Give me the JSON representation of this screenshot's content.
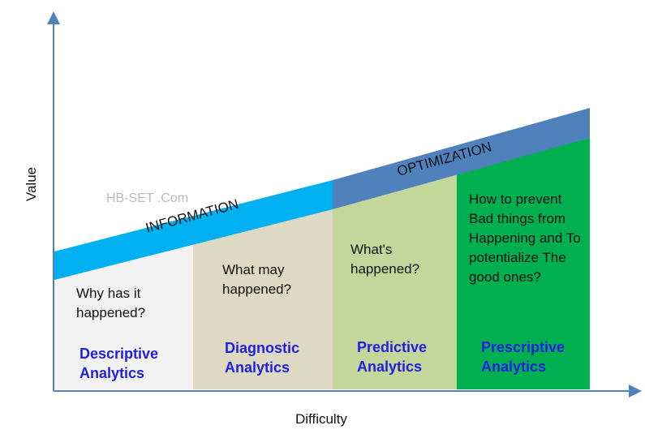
{
  "axes": {
    "y_label": "Value",
    "x_label": "Difficulty"
  },
  "watermark": "HB-SET .Com",
  "bands": [
    {
      "label": "INFORMATION",
      "color": "#00b0f0"
    },
    {
      "label": "OPTIMIZATION",
      "color": "#4f81bd"
    }
  ],
  "columns": [
    {
      "question": "Why has it happened?",
      "title_1": "Descriptive",
      "title_2": "Analytics",
      "color": "#f2f2f2"
    },
    {
      "question": "What may happened?",
      "title_1": "Diagnostic",
      "title_2": "Analytics",
      "color": "#ddd9c3"
    },
    {
      "question": "What's happened?",
      "title_1": "Predictive",
      "title_2": "Analytics",
      "color": "#c3d69b"
    },
    {
      "question": "How to prevent Bad things from Happening and To potentialize The good ones?",
      "title_1": "Prescriptive",
      "title_2": "Analytics",
      "color": "#00b050"
    }
  ],
  "colors": {
    "axis": "#4f81bd",
    "title": "#1f1fe0"
  }
}
